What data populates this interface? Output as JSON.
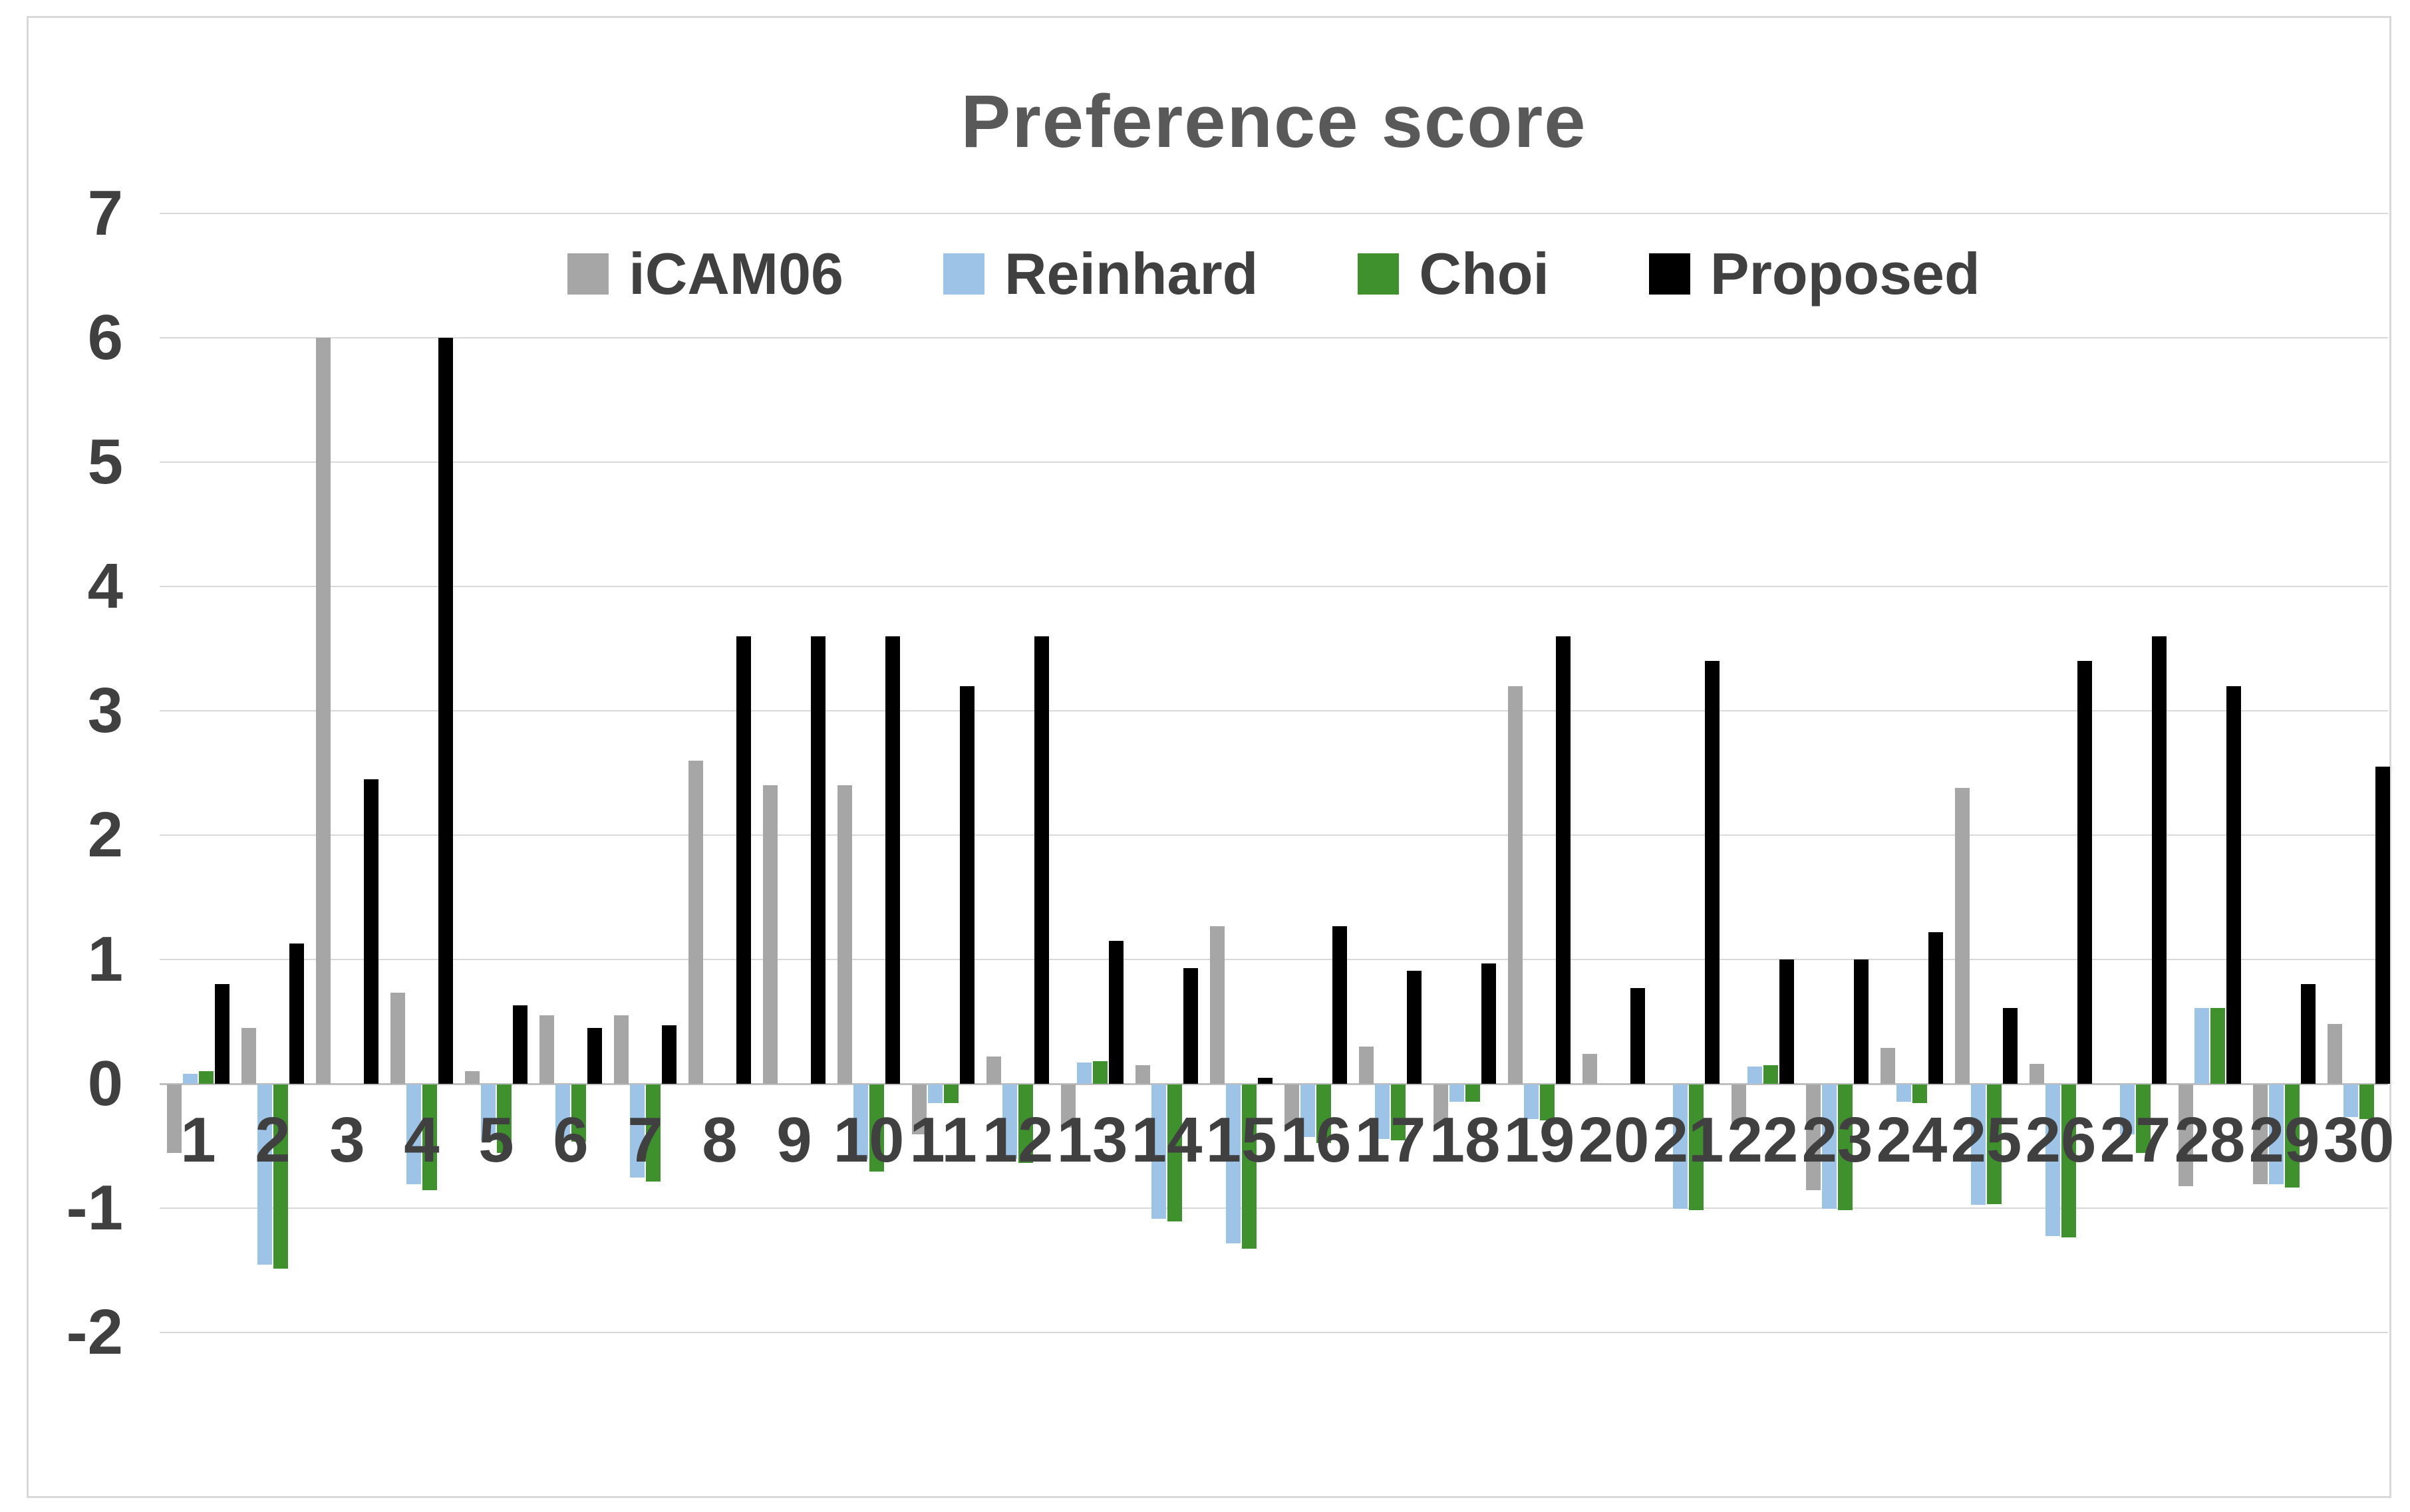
{
  "title": "Preference score",
  "colors": {
    "icam06": "#a6a6a6",
    "reinhard": "#9dc3e6",
    "choi": "#3f912d",
    "proposed": "#000000",
    "title_text": "#595959",
    "axis_text": "#404040",
    "gridline": "#d9d9d9",
    "axis_line": "#bfbfbf",
    "border": "#d9d9d9"
  },
  "chart_data": {
    "type": "bar",
    "title": "Preference score",
    "xlabel": "",
    "ylabel": "",
    "ylim": [
      -2,
      7
    ],
    "yticks": [
      7,
      6,
      5,
      4,
      3,
      2,
      1,
      0,
      -1,
      -2
    ],
    "grid": true,
    "legend_position": "top-center",
    "categories": [
      "1",
      "2",
      "3",
      "4",
      "5",
      "6",
      "7",
      "8",
      "9",
      "10",
      "11",
      "12",
      "13",
      "14",
      "15",
      "16",
      "17",
      "18",
      "19",
      "20",
      "21",
      "22",
      "23",
      "24",
      "25",
      "26",
      "27",
      "28",
      "29",
      "30"
    ],
    "series": [
      {
        "name": "iCAM06",
        "color": "#a6a6a6",
        "values": [
          -0.55,
          0.45,
          6,
          0.73,
          0.1,
          0.55,
          0.55,
          2.6,
          2.4,
          2.4,
          -0.4,
          0.22,
          -0.35,
          0.15,
          1.27,
          -0.33,
          0.3,
          -0.32,
          3.2,
          0.24,
          0,
          -0.31,
          -0.85,
          0.29,
          2.38,
          0.16,
          0,
          -0.82,
          -0.8,
          0.48
        ]
      },
      {
        "name": "Reinhard",
        "color": "#9dc3e6",
        "values": [
          0.08,
          -1.45,
          0,
          -0.8,
          -0.45,
          -0.45,
          -0.75,
          0,
          0,
          -0.6,
          -0.15,
          -0.6,
          0.17,
          -1.08,
          -1.28,
          -0.42,
          -0.44,
          -0.14,
          -0.28,
          0,
          -1,
          0.14,
          -1,
          -0.14,
          -0.97,
          -1.22,
          -0.4,
          0.61,
          -0.8,
          -0.26
        ]
      },
      {
        "name": "Choi",
        "color": "#3f912d",
        "values": [
          0.1,
          -1.48,
          0,
          -0.85,
          -0.55,
          -0.46,
          -0.78,
          0,
          0,
          -0.7,
          -0.15,
          -0.63,
          0.18,
          -1.1,
          -1.32,
          -0.47,
          -0.45,
          -0.14,
          -0.29,
          0,
          -1.01,
          0.15,
          -1.01,
          -0.15,
          -0.96,
          -1.23,
          -0.55,
          0.61,
          -0.83,
          -0.28
        ]
      },
      {
        "name": "Proposed",
        "color": "#000000",
        "values": [
          0.8,
          1.13,
          2.45,
          6,
          0.63,
          0.45,
          0.47,
          3.6,
          3.6,
          3.6,
          3.2,
          3.6,
          1.15,
          0.93,
          0.05,
          1.27,
          0.91,
          0.97,
          3.6,
          0.77,
          3.4,
          1,
          1,
          1.22,
          0.61,
          3.4,
          3.6,
          3.2,
          0.8,
          2.55
        ]
      }
    ]
  }
}
